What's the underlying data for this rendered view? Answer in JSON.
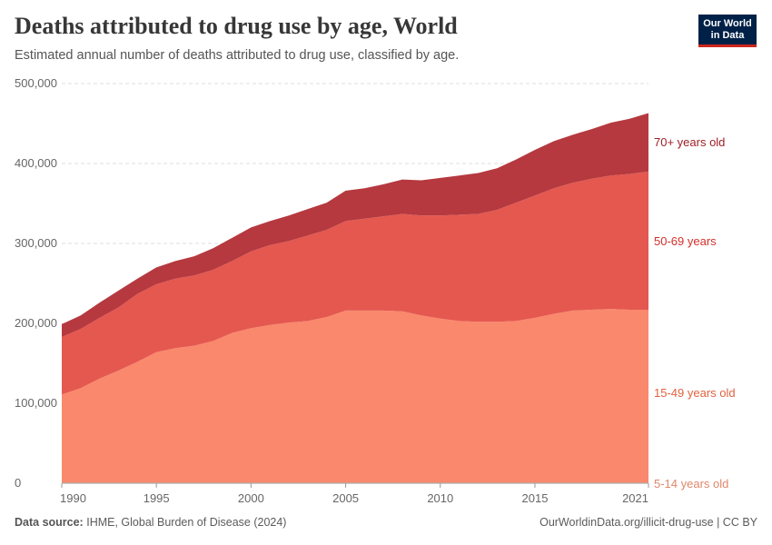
{
  "header": {
    "title": "Deaths attributed to drug use by age, World",
    "subtitle": "Estimated annual number of deaths attributed to drug use, classified by age.",
    "logo": "Our World in Data"
  },
  "footer": {
    "source_label": "Data source:",
    "source": "IHME, Global Burden of Disease (2024)",
    "link": "OurWorldinData.org/illicit-drug-use | CC BY"
  },
  "chart_data": {
    "type": "area",
    "stacked": true,
    "x": [
      1990,
      1991,
      1992,
      1993,
      1994,
      1995,
      1996,
      1997,
      1998,
      1999,
      2000,
      2001,
      2002,
      2003,
      2004,
      2005,
      2006,
      2007,
      2008,
      2009,
      2010,
      2011,
      2012,
      2013,
      2014,
      2015,
      2016,
      2017,
      2018,
      2019,
      2020,
      2021
    ],
    "xticks": [
      "1990",
      "1995",
      "2000",
      "2005",
      "2010",
      "2015",
      "2021"
    ],
    "yticks": [
      "0",
      "100,000",
      "200,000",
      "300,000",
      "400,000",
      "500,000"
    ],
    "ylim": [
      0,
      500000
    ],
    "grid": true,
    "legend": "right-inline",
    "series": [
      {
        "name": "5-14 years old",
        "color": "#fb9a7c",
        "label_color": "#e0876a",
        "values": [
          1000,
          1000,
          1000,
          1000,
          1000,
          1000,
          1000,
          1000,
          1000,
          1000,
          1000,
          1000,
          1000,
          1000,
          1000,
          1000,
          1000,
          1000,
          1000,
          1000,
          1000,
          1000,
          1000,
          1000,
          1000,
          1000,
          1000,
          1000,
          1000,
          1000,
          1000,
          1000
        ]
      },
      {
        "name": "15-49 years old",
        "color": "#fa886c",
        "label_color": "#e0623f",
        "values": [
          110000,
          118000,
          130000,
          140000,
          151000,
          163000,
          168000,
          171000,
          177000,
          187000,
          193000,
          197000,
          200000,
          202000,
          207000,
          215000,
          215000,
          215000,
          214000,
          209000,
          205000,
          202000,
          201000,
          201000,
          202000,
          206000,
          211000,
          215000,
          216000,
          217000,
          216000,
          216000
        ]
      },
      {
        "name": "50-69 years",
        "color": "#e45850",
        "label_color": "#d42f2a",
        "values": [
          72000,
          74000,
          76000,
          79000,
          85000,
          85000,
          87000,
          88000,
          89000,
          90000,
          96000,
          100000,
          102000,
          107000,
          109000,
          112000,
          115000,
          118000,
          122000,
          125000,
          129000,
          133000,
          135000,
          140000,
          148000,
          153000,
          157000,
          160000,
          164000,
          167000,
          170000,
          173000
        ]
      },
      {
        "name": "70+ years old",
        "color": "#b5393f",
        "label_color": "#9e1f26",
        "values": [
          16000,
          17000,
          19000,
          21000,
          19000,
          21000,
          22000,
          24000,
          27000,
          29000,
          30000,
          30000,
          32000,
          33000,
          34000,
          38000,
          38000,
          40000,
          43000,
          44000,
          47000,
          49000,
          51000,
          52000,
          54000,
          57000,
          59000,
          60000,
          62000,
          66000,
          69000,
          73000
        ]
      }
    ]
  }
}
